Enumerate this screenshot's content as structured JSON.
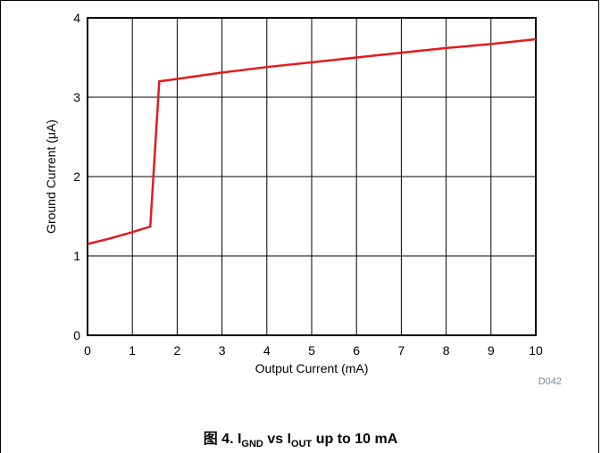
{
  "figure": {
    "code": "D042",
    "caption": {
      "prefix": "图 4. I",
      "sub1": "GND",
      "middle": " vs I",
      "sub2": "OUT",
      "suffix": " up to 10 mA"
    }
  },
  "chart_data": {
    "type": "line",
    "title": "",
    "xlabel": "Output Current (mA)",
    "ylabel": "Ground Current (μA)",
    "xlim": [
      0,
      10
    ],
    "ylim": [
      0,
      4
    ],
    "x_ticks": [
      "0",
      "1",
      "2",
      "3",
      "4",
      "5",
      "6",
      "7",
      "8",
      "9",
      "10"
    ],
    "y_ticks": [
      "0",
      "1",
      "2",
      "3",
      "4"
    ],
    "grid": true,
    "series_color": "#e41a1c",
    "series": [
      {
        "x": [
          0,
          0.5,
          1.0,
          1.4,
          1.6,
          2.0,
          3.0,
          4.0,
          5.0,
          6.0,
          7.0,
          8.0,
          9.0,
          10.0
        ],
        "y": [
          1.15,
          1.22,
          1.3,
          1.37,
          3.2,
          3.23,
          3.31,
          3.38,
          3.44,
          3.5,
          3.56,
          3.62,
          3.67,
          3.73
        ]
      }
    ]
  }
}
